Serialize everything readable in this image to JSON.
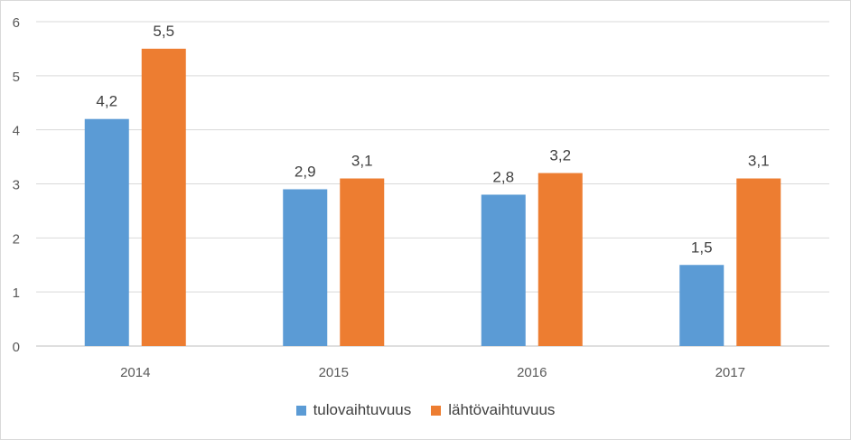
{
  "chart_data": {
    "type": "bar",
    "categories": [
      "2014",
      "2015",
      "2016",
      "2017"
    ],
    "series": [
      {
        "name": "tulovaihtuvuus",
        "values": [
          4.2,
          2.9,
          2.8,
          1.5
        ],
        "labels": [
          "4,2",
          "2,9",
          "2,8",
          "1,5"
        ],
        "color": "#5b9bd5"
      },
      {
        "name": "lähtövaihtuvuus",
        "values": [
          5.5,
          3.1,
          3.2,
          3.1
        ],
        "labels": [
          "5,5",
          "3,1",
          "3,2",
          "3,1"
        ],
        "color": "#ed7d31"
      }
    ],
    "ylim": [
      0,
      6
    ],
    "yticks": [
      "0",
      "1",
      "2",
      "3",
      "4",
      "5",
      "6"
    ],
    "grid": true,
    "legend_position": "bottom"
  }
}
